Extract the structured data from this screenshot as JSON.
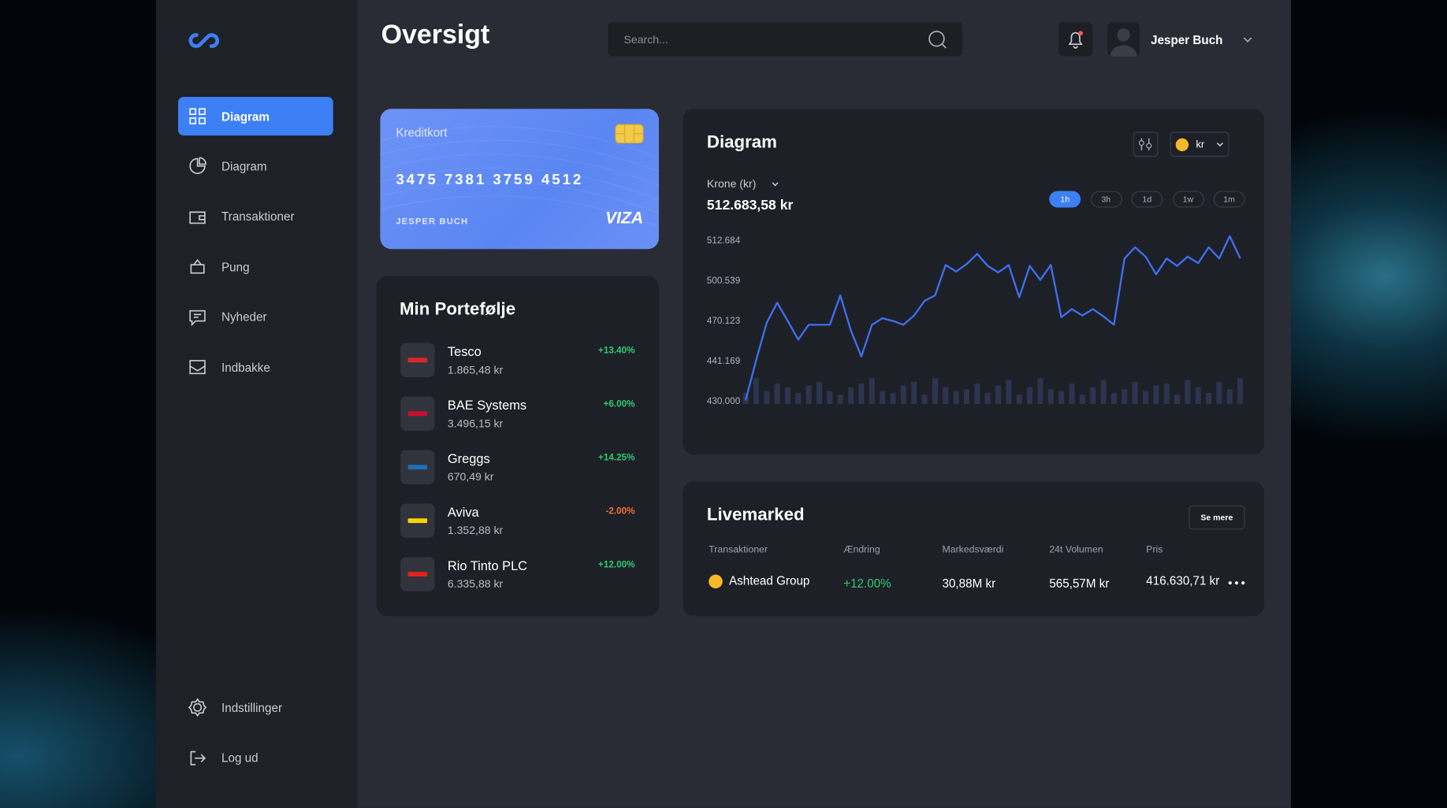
{
  "sidebar": {
    "nav": [
      "Diagram",
      "Diagram",
      "Transaktioner",
      "Pung",
      "Nyheder",
      "Indbakke"
    ],
    "footer_nav": [
      "Indstillinger",
      "Log ud"
    ]
  },
  "header": {
    "title": "Oversigt",
    "search_placeholder": "Search...",
    "user_name": "Jesper Buch"
  },
  "card": {
    "label": "Kreditkort",
    "number": "3475 7381 3759 4512",
    "holder": "JESPER BUCH",
    "brand": "VIZA"
  },
  "portfolio": {
    "title": "Min Portefølje",
    "items": [
      {
        "name": "Tesco",
        "value": "1.865,48 kr",
        "change": "+13.40%",
        "color": "#2ecc71"
      },
      {
        "name": "BAE Systems",
        "value": "3.496,15 kr",
        "change": "+6.00%",
        "color": "#2ecc71"
      },
      {
        "name": "Greggs",
        "value": "670,49 kr",
        "change": "+14.25%",
        "color": "#2ecc71"
      },
      {
        "name": "Aviva",
        "value": "1.352,88 kr",
        "change": "-2.00%",
        "color": "#f0703a"
      },
      {
        "name": "Rio Tinto PLC",
        "value": "6.335,88 kr",
        "change": "+12.00%",
        "color": "#2ecc71"
      }
    ]
  },
  "chart_data": {
    "type": "line",
    "title": "Diagram",
    "currency": "kr",
    "series_label": "Krone (kr)",
    "current_value": "512.683,58 kr",
    "ranges": [
      "1h",
      "3h",
      "1d",
      "1w",
      "1m"
    ],
    "active_range": "1h",
    "color": "#3d6ff0",
    "volume_color": "#2c3550",
    "values": [
      430000,
      441169,
      468100,
      483258,
      469448,
      455982,
      466754,
      466754,
      466754,
      488788,
      462714,
      443862,
      466754,
      471506,
      469448,
      466754,
      473580,
      484640,
      488788,
      505057,
      503081,
      505339,
      508446,
      504775,
      502799,
      505057,
      487406,
      504775,
      500539,
      505057,
      472198,
      478419,
      473580,
      478419,
      472889,
      466754,
      507034,
      510424,
      507599,
      502234,
      507034,
      504775,
      507599,
      505622,
      510424,
      507034,
      513814,
      507034
    ],
    "volume_values": [
      12,
      28,
      14,
      22,
      18,
      12,
      20,
      24,
      14,
      10,
      18,
      22,
      28,
      14,
      12,
      20,
      24,
      10,
      28,
      18,
      14,
      16,
      22,
      12,
      20,
      26,
      10,
      18,
      28,
      16,
      14,
      22,
      10,
      18,
      26,
      12,
      16,
      24,
      14,
      20,
      22,
      10,
      26,
      18,
      12,
      24,
      16,
      28
    ],
    "ylim": [
      430000,
      515000
    ],
    "yticks": [
      {
        "value": 512684,
        "label": "512.684"
      },
      {
        "value": 500539,
        "label": "500.539"
      },
      {
        "value": 470123,
        "label": "470.123"
      },
      {
        "value": 441169,
        "label": "441.169"
      },
      {
        "value": 430000,
        "label": "430.000"
      }
    ]
  },
  "live_market": {
    "title": "Livemarked",
    "button": "Se mere",
    "columns": [
      "Transaktioner",
      "Ændring",
      "Markedsværdi",
      "24t Volumen",
      "Pris"
    ],
    "rows": [
      [
        "Ashtead Group",
        "+12.00%",
        "30,88M kr",
        "565,57M kr",
        "416.630,71 kr"
      ]
    ],
    "change_color": "#2ecc71"
  }
}
